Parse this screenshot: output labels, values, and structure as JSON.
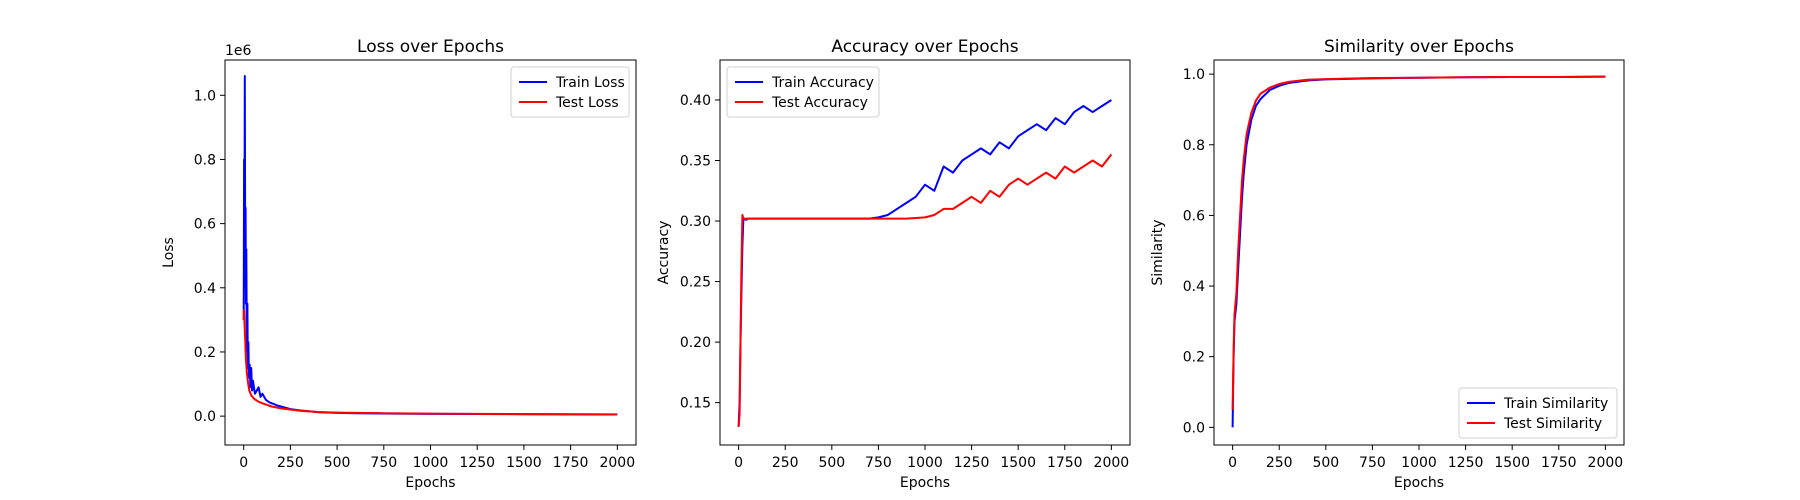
{
  "chart_data": [
    {
      "type": "line",
      "title": "Loss over Epochs",
      "xlabel": "Epochs",
      "ylabel": "Loss",
      "y_offset_label": "1e6",
      "xlim": [
        -100,
        2100
      ],
      "ylim": [
        -90000,
        1110000
      ],
      "x_ticks": [
        0,
        250,
        500,
        750,
        1000,
        1250,
        1500,
        1750,
        2000
      ],
      "x_tick_labels": [
        "0",
        "250",
        "500",
        "750",
        "1000",
        "1250",
        "1500",
        "1750",
        "2000"
      ],
      "y_ticks": [
        0,
        200000,
        400000,
        600000,
        800000,
        1000000
      ],
      "y_tick_labels": [
        "0.0",
        "0.2",
        "0.4",
        "0.6",
        "0.8",
        "1.0"
      ],
      "grid": false,
      "legend_position": "upper right",
      "series": [
        {
          "name": "Train Loss",
          "color": "#0000ff",
          "x": [
            0,
            2,
            4,
            6,
            8,
            10,
            12,
            14,
            16,
            18,
            20,
            22,
            25,
            28,
            32,
            36,
            40,
            45,
            50,
            60,
            70,
            80,
            90,
            100,
            120,
            140,
            160,
            180,
            200,
            250,
            300,
            350,
            400,
            500,
            600,
            800,
            1000,
            1250,
            1500,
            1750,
            2000
          ],
          "y": [
            300000,
            800000,
            400000,
            1060000,
            500000,
            650000,
            350000,
            520000,
            300000,
            200000,
            350000,
            150000,
            230000,
            120000,
            160000,
            90000,
            150000,
            80000,
            110000,
            70000,
            80000,
            90000,
            60000,
            70000,
            50000,
            42000,
            38000,
            33000,
            30000,
            22000,
            18000,
            15000,
            12000,
            10000,
            9000,
            8000,
            7000,
            6500,
            6000,
            5500,
            5000
          ]
        },
        {
          "name": "Test Loss",
          "color": "#ff0000",
          "x": [
            0,
            2,
            5,
            8,
            10,
            14,
            18,
            22,
            26,
            30,
            40,
            50,
            60,
            80,
            100,
            150,
            200,
            300,
            400,
            500,
            750,
            1000,
            1250,
            1500,
            1750,
            2000
          ],
          "y": [
            300000,
            330000,
            280000,
            240000,
            200000,
            160000,
            130000,
            110000,
            95000,
            80000,
            65000,
            58000,
            52000,
            45000,
            40000,
            30000,
            24000,
            17000,
            13000,
            11000,
            9000,
            8000,
            7000,
            6500,
            6000,
            5500
          ]
        }
      ]
    },
    {
      "type": "line",
      "title": "Accuracy over Epochs",
      "xlabel": "Epochs",
      "ylabel": "Accuracy",
      "xlim": [
        -100,
        2100
      ],
      "ylim": [
        0.115,
        0.433
      ],
      "x_ticks": [
        0,
        250,
        500,
        750,
        1000,
        1250,
        1500,
        1750,
        2000
      ],
      "x_tick_labels": [
        "0",
        "250",
        "500",
        "750",
        "1000",
        "1250",
        "1500",
        "1750",
        "2000"
      ],
      "y_ticks": [
        0.15,
        0.2,
        0.25,
        0.3,
        0.35,
        0.4
      ],
      "y_tick_labels": [
        "0.15",
        "0.20",
        "0.25",
        "0.30",
        "0.35",
        "0.40"
      ],
      "grid": false,
      "legend_position": "upper left",
      "series": [
        {
          "name": "Train Accuracy",
          "color": "#0000ff",
          "x": [
            0,
            5,
            10,
            15,
            20,
            25,
            30,
            40,
            50,
            100,
            300,
            500,
            700,
            750,
            800,
            850,
            900,
            950,
            1000,
            1050,
            1100,
            1150,
            1200,
            1250,
            1300,
            1350,
            1400,
            1450,
            1500,
            1550,
            1600,
            1650,
            1700,
            1750,
            1800,
            1850,
            1900,
            1950,
            2000
          ],
          "y": [
            0.13,
            0.15,
            0.2,
            0.24,
            0.28,
            0.3,
            0.302,
            0.301,
            0.302,
            0.302,
            0.302,
            0.302,
            0.302,
            0.303,
            0.305,
            0.31,
            0.315,
            0.32,
            0.33,
            0.325,
            0.345,
            0.34,
            0.35,
            0.355,
            0.36,
            0.355,
            0.365,
            0.36,
            0.37,
            0.375,
            0.38,
            0.375,
            0.385,
            0.38,
            0.39,
            0.395,
            0.39,
            0.395,
            0.4
          ]
        },
        {
          "name": "Test Accuracy",
          "color": "#ff0000",
          "x": [
            0,
            5,
            10,
            15,
            20,
            25,
            30,
            50,
            100,
            300,
            500,
            700,
            900,
            1000,
            1050,
            1100,
            1150,
            1200,
            1250,
            1300,
            1350,
            1400,
            1450,
            1500,
            1550,
            1600,
            1650,
            1700,
            1750,
            1800,
            1850,
            1900,
            1950,
            2000
          ],
          "y": [
            0.13,
            0.14,
            0.2,
            0.26,
            0.305,
            0.302,
            0.302,
            0.302,
            0.302,
            0.302,
            0.302,
            0.302,
            0.302,
            0.303,
            0.305,
            0.31,
            0.31,
            0.315,
            0.32,
            0.315,
            0.325,
            0.32,
            0.33,
            0.335,
            0.33,
            0.335,
            0.34,
            0.335,
            0.345,
            0.34,
            0.345,
            0.35,
            0.345,
            0.355
          ]
        }
      ]
    },
    {
      "type": "line",
      "title": "Similarity over Epochs",
      "xlabel": "Epochs",
      "ylabel": "Similarity",
      "xlim": [
        -100,
        2100
      ],
      "ylim": [
        -0.05,
        1.04
      ],
      "x_ticks": [
        0,
        250,
        500,
        750,
        1000,
        1250,
        1500,
        1750,
        2000
      ],
      "x_tick_labels": [
        "0",
        "250",
        "500",
        "750",
        "1000",
        "1250",
        "1500",
        "1750",
        "2000"
      ],
      "y_ticks": [
        0,
        0.2,
        0.4,
        0.6,
        0.8,
        1.0
      ],
      "y_tick_labels": [
        "0.0",
        "0.2",
        "0.4",
        "0.6",
        "0.8",
        "1.0"
      ],
      "grid": false,
      "legend_position": "lower right",
      "series": [
        {
          "name": "Train Similarity",
          "color": "#0000ff",
          "x": [
            0,
            5,
            10,
            20,
            30,
            40,
            50,
            60,
            75,
            100,
            125,
            150,
            200,
            250,
            300,
            400,
            500,
            750,
            1000,
            1250,
            1500,
            1750,
            2000
          ],
          "y": [
            0.0,
            0.2,
            0.3,
            0.35,
            0.45,
            0.55,
            0.65,
            0.72,
            0.8,
            0.87,
            0.91,
            0.93,
            0.955,
            0.967,
            0.975,
            0.982,
            0.985,
            0.988,
            0.99,
            0.991,
            0.992,
            0.992,
            0.993
          ]
        },
        {
          "name": "Test Similarity",
          "color": "#ff0000",
          "x": [
            0,
            5,
            10,
            20,
            30,
            40,
            50,
            60,
            75,
            100,
            125,
            150,
            200,
            250,
            300,
            400,
            500,
            750,
            1000,
            1250,
            1500,
            1750,
            2000
          ],
          "y": [
            0.05,
            0.22,
            0.32,
            0.38,
            0.5,
            0.6,
            0.7,
            0.76,
            0.83,
            0.89,
            0.925,
            0.945,
            0.962,
            0.972,
            0.978,
            0.984,
            0.986,
            0.989,
            0.99,
            0.991,
            0.992,
            0.992,
            0.993
          ]
        }
      ]
    }
  ]
}
